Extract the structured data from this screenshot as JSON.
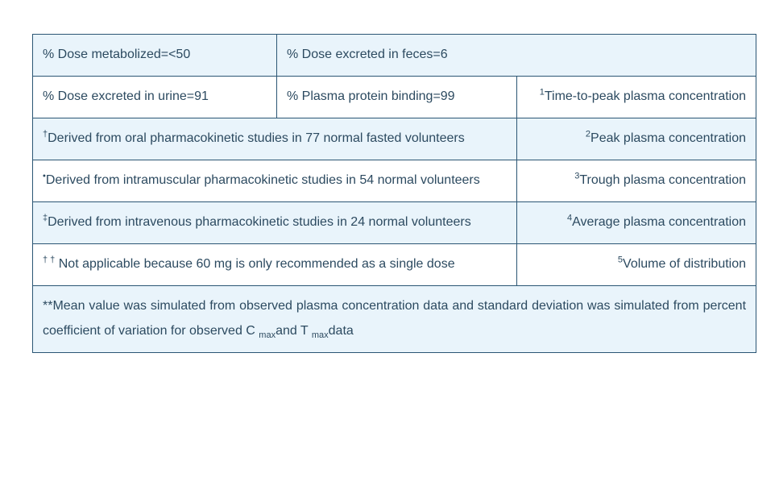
{
  "colors": {
    "border": "#2b5674",
    "row_shaded": "#e9f4fb",
    "row_plain": "#ffffff",
    "text": "#2c4a60"
  },
  "table": {
    "r1c1": "% Dose metabolized=<50",
    "r1c2": "% Dose excreted in feces=6",
    "r2c1": "% Dose excreted in urine=91",
    "r2c2": "% Plasma protein binding=99",
    "r2c3": {
      "sup": "1",
      "text": "Time-to-peak plasma concentration"
    },
    "r3c1": {
      "sup": "†",
      "text": "Derived from oral pharmacokinetic studies in 77 normal fasted volunteers"
    },
    "r3c2": {
      "sup": "2",
      "text": "Peak plasma concentration"
    },
    "r4c1": {
      "sup": "•",
      "text": "Derived from intramuscular pharmacokinetic studies in 54 normal volunteers"
    },
    "r4c2": {
      "sup": "3",
      "text": "Trough plasma concentration"
    },
    "r5c1": {
      "sup": "‡",
      "text": "Derived from intravenous pharmacokinetic studies in 24 normal volunteers"
    },
    "r5c2": {
      "sup": "4",
      "text": "Average plasma concentration"
    },
    "r6c1": {
      "sup": "† †",
      "text": " Not applicable because 60 mg is only recommended as a single dose"
    },
    "r6c2": {
      "sup": "5",
      "text": "Volume of distribution"
    },
    "r7": {
      "part1": "**Mean value was simulated from observed plasma concentration data and standard deviation was simulated from percent coefficient of variation for observed C ",
      "sub1": "max",
      "part2": "and T ",
      "sub2": "max",
      "part3": "data"
    }
  }
}
